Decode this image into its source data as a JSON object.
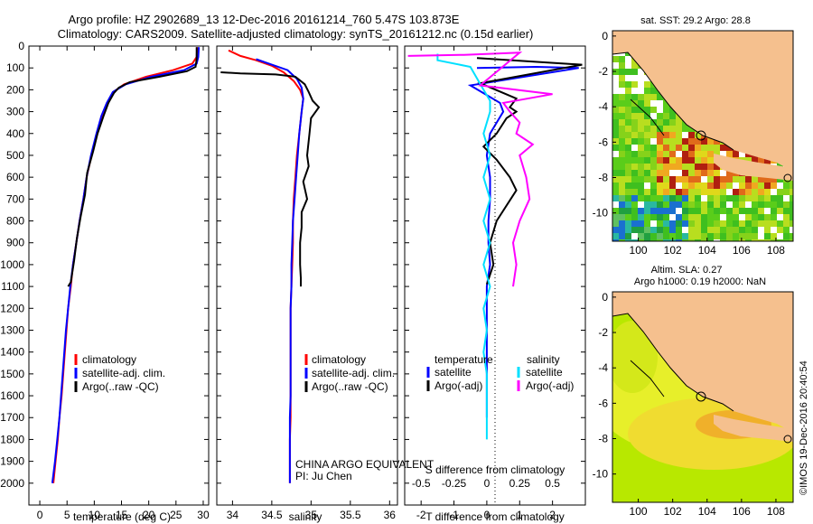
{
  "header": {
    "line1": "Argo profile: HZ 2902689_13 12-Dec-2016 20161214_760 5.47S 103.873E",
    "line2": "Climatology: CARS2009. Satellite-adjusted climatology: synTS_20161212.nc (0.15d earlier)"
  },
  "footer": {
    "credit": "©IMOS 19-Dec-2016 20:40:54"
  },
  "colors": {
    "climatology": "#ff0000",
    "satellite": "#0000ff",
    "argo": "#000000",
    "sal_sat": "#00e0ff",
    "sal_argo": "#ff00ff",
    "land": "#f5c08e"
  },
  "chart_data": [
    {
      "type": "line",
      "id": "temperature",
      "xlabel": "temperature (deg C)",
      "xlim": [
        -2,
        31
      ],
      "ylim": [
        2100,
        0
      ],
      "xticks": [
        0,
        5,
        10,
        15,
        20,
        25,
        30
      ],
      "yticks": [
        0,
        100,
        200,
        300,
        400,
        500,
        600,
        700,
        800,
        900,
        1000,
        1100,
        1200,
        1300,
        1400,
        1500,
        1600,
        1700,
        1800,
        1900,
        2000
      ],
      "legend": [
        "climatology",
        "satellite-adj. clim.",
        "Argo(..raw -QC)"
      ],
      "series": [
        {
          "name": "climatology",
          "color": "#ff0000",
          "points": [
            [
              28.9,
              5
            ],
            [
              28.8,
              50
            ],
            [
              28.0,
              80
            ],
            [
              24.5,
              110
            ],
            [
              19.5,
              140
            ],
            [
              15.5,
              175
            ],
            [
              13.5,
              210
            ],
            [
              12.5,
              260
            ],
            [
              11.5,
              320
            ],
            [
              10.5,
              400
            ],
            [
              9.5,
              500
            ],
            [
              8.6,
              600
            ],
            [
              8.0,
              700
            ],
            [
              7.3,
              800
            ],
            [
              6.7,
              900
            ],
            [
              6.1,
              1000
            ],
            [
              5.7,
              1100
            ],
            [
              5.2,
              1200
            ],
            [
              4.9,
              1300
            ],
            [
              4.6,
              1400
            ],
            [
              4.3,
              1500
            ],
            [
              4.0,
              1600
            ],
            [
              3.6,
              1700
            ],
            [
              3.3,
              1800
            ],
            [
              2.9,
              1900
            ],
            [
              2.5,
              2000
            ]
          ]
        },
        {
          "name": "satellite-adj. clim.",
          "color": "#0000ff",
          "points": [
            [
              29.2,
              5
            ],
            [
              29.1,
              50
            ],
            [
              28.8,
              80
            ],
            [
              26.5,
              110
            ],
            [
              20.5,
              140
            ],
            [
              15.8,
              175
            ],
            [
              13.4,
              210
            ],
            [
              12.3,
              260
            ],
            [
              11.3,
              320
            ],
            [
              10.4,
              400
            ],
            [
              9.4,
              500
            ],
            [
              8.6,
              600
            ],
            [
              8.0,
              700
            ],
            [
              7.3,
              800
            ],
            [
              6.7,
              900
            ],
            [
              6.1,
              1000
            ],
            [
              5.6,
              1100
            ],
            [
              5.2,
              1200
            ],
            [
              4.8,
              1300
            ],
            [
              4.5,
              1400
            ],
            [
              4.2,
              1500
            ],
            [
              3.9,
              1600
            ],
            [
              3.6,
              1700
            ],
            [
              3.2,
              1800
            ],
            [
              2.8,
              1900
            ],
            [
              2.3,
              2000
            ]
          ]
        },
        {
          "name": "Argo(..raw -QC)",
          "color": "#000000",
          "points": [
            [
              28.8,
              5
            ],
            [
              28.8,
              60
            ],
            [
              28.6,
              95
            ],
            [
              27.0,
              115
            ],
            [
              22.0,
              140
            ],
            [
              16.5,
              165
            ],
            [
              14.5,
              190
            ],
            [
              13.6,
              215
            ],
            [
              12.6,
              260
            ],
            [
              11.7,
              320
            ],
            [
              10.6,
              400
            ],
            [
              9.8,
              480
            ],
            [
              8.7,
              580
            ],
            [
              8.3,
              680
            ],
            [
              7.5,
              780
            ],
            [
              6.8,
              880
            ],
            [
              6.3,
              980
            ],
            [
              5.7,
              1080
            ],
            [
              5.2,
              1100
            ]
          ]
        }
      ]
    },
    {
      "type": "line",
      "id": "salinity",
      "xlabel": "salinity",
      "xlim": [
        33.8,
        36.1
      ],
      "ylim": [
        2100,
        0
      ],
      "xticks": [
        34,
        34.5,
        35,
        35.5,
        36
      ],
      "yticks": [
        0,
        100,
        200,
        300,
        400,
        500,
        600,
        700,
        800,
        900,
        1000,
        1100,
        1200,
        1300,
        1400,
        1500,
        1600,
        1700,
        1800,
        1900,
        2000
      ],
      "legend": [
        "climatology",
        "satellite-adj. clim.",
        "Argo(..raw -QC)"
      ],
      "annotations": [
        "CHINA ARGO EQUIVALENT",
        "PI: Ju Chen"
      ],
      "series": [
        {
          "name": "climatology",
          "color": "#ff0000",
          "points": [
            [
              33.95,
              20
            ],
            [
              34.1,
              45
            ],
            [
              34.3,
              65
            ],
            [
              34.5,
              90
            ],
            [
              34.65,
              120
            ],
            [
              34.78,
              160
            ],
            [
              34.86,
              200
            ],
            [
              34.9,
              240
            ],
            [
              34.88,
              300
            ],
            [
              34.85,
              400
            ],
            [
              34.82,
              500
            ],
            [
              34.8,
              600
            ],
            [
              34.78,
              700
            ],
            [
              34.77,
              800
            ],
            [
              34.77,
              900
            ],
            [
              34.76,
              1000
            ],
            [
              34.75,
              1100
            ],
            [
              34.74,
              1200
            ],
            [
              34.74,
              1300
            ],
            [
              34.74,
              1400
            ],
            [
              34.74,
              1500
            ],
            [
              34.74,
              1600
            ],
            [
              34.74,
              1700
            ],
            [
              34.73,
              1800
            ],
            [
              34.73,
              1900
            ],
            [
              34.73,
              2000
            ]
          ]
        },
        {
          "name": "satellite-adj. clim.",
          "color": "#0000ff",
          "points": [
            [
              34.3,
              60
            ],
            [
              34.5,
              85
            ],
            [
              34.7,
              110
            ],
            [
              34.82,
              150
            ],
            [
              34.88,
              190
            ],
            [
              34.9,
              240
            ],
            [
              34.88,
              300
            ],
            [
              34.85,
              400
            ],
            [
              34.83,
              500
            ],
            [
              34.81,
              600
            ],
            [
              34.79,
              700
            ],
            [
              34.77,
              800
            ],
            [
              34.76,
              900
            ],
            [
              34.75,
              1000
            ],
            [
              34.75,
              1100
            ],
            [
              34.74,
              1200
            ],
            [
              34.74,
              1300
            ],
            [
              34.74,
              1400
            ],
            [
              34.74,
              1500
            ],
            [
              34.74,
              1600
            ],
            [
              34.73,
              1700
            ],
            [
              34.73,
              1800
            ],
            [
              34.73,
              1900
            ],
            [
              34.73,
              2000
            ]
          ]
        },
        {
          "name": "Argo(..raw -QC)",
          "color": "#000000",
          "points": [
            [
              33.85,
              120
            ],
            [
              34.1,
              125
            ],
            [
              34.55,
              130
            ],
            [
              34.8,
              140
            ],
            [
              34.92,
              175
            ],
            [
              34.97,
              210
            ],
            [
              35.02,
              250
            ],
            [
              35.1,
              280
            ],
            [
              35.0,
              330
            ],
            [
              34.98,
              400
            ],
            [
              34.95,
              500
            ],
            [
              34.97,
              550
            ],
            [
              34.9,
              620
            ],
            [
              34.95,
              700
            ],
            [
              34.88,
              760
            ],
            [
              34.88,
              830
            ],
            [
              34.86,
              900
            ],
            [
              34.86,
              1000
            ],
            [
              34.87,
              1060
            ],
            [
              34.87,
              1100
            ]
          ]
        }
      ]
    },
    {
      "type": "line",
      "id": "differences",
      "xlabel_top": "S difference from climatology",
      "xlabel": "T difference from climatology",
      "xlim_T": [
        -2.5,
        3
      ],
      "xticks_T": [
        -2,
        -1,
        0,
        1,
        2
      ],
      "xticks_S": [
        "-0.5",
        "-0.25",
        "0",
        "0.25",
        "0.5"
      ],
      "ylim": [
        2100,
        0
      ],
      "legend_temperature_title": "temperature",
      "legend_salinity_title": "salinity",
      "legend": [
        "satellite",
        "Argo(-adj)",
        "satellite",
        "Argo(-adj)"
      ],
      "series": [
        {
          "name": "satellite",
          "quantity": "temperature",
          "color": "#0000ff",
          "points": [
            [
              -0.3,
              100
            ],
            [
              1.5,
              95
            ],
            [
              2.8,
              100
            ],
            [
              -0.5,
              180
            ],
            [
              0.4,
              260
            ],
            [
              0.5,
              300
            ],
            [
              0.1,
              400
            ],
            [
              0.0,
              500
            ],
            [
              0.1,
              600
            ],
            [
              0.1,
              700
            ],
            [
              0.05,
              800
            ],
            [
              0.05,
              900
            ],
            [
              0.1,
              1000
            ],
            [
              0.0,
              1100
            ],
            [
              0.0,
              1200
            ],
            [
              0.0,
              1300
            ],
            [
              0.0,
              1400
            ],
            [
              0.0,
              1500
            ],
            [
              0.0,
              1600
            ],
            [
              0.0,
              1700
            ]
          ]
        },
        {
          "name": "Argo(-adj)",
          "quantity": "temperature",
          "color": "#000000",
          "points": [
            [
              -0.3,
              55
            ],
            [
              1.8,
              75
            ],
            [
              2.9,
              85
            ],
            [
              -0.2,
              170
            ],
            [
              0.9,
              240
            ],
            [
              0.7,
              280
            ],
            [
              0.9,
              300
            ],
            [
              0.6,
              330
            ],
            [
              0.3,
              400
            ],
            [
              -0.1,
              460
            ],
            [
              0.3,
              520
            ],
            [
              0.7,
              600
            ],
            [
              0.9,
              660
            ],
            [
              0.6,
              730
            ],
            [
              0.3,
              800
            ],
            [
              0.1,
              900
            ],
            [
              0.2,
              1000
            ],
            [
              0.0,
              1090
            ]
          ]
        },
        {
          "name": "satellite",
          "quantity": "salinity",
          "color": "#00e0ff",
          "points": [
            [
              -1.5,
              35
            ],
            [
              -1.5,
              65
            ],
            [
              -0.5,
              95
            ],
            [
              -0.1,
              200
            ],
            [
              0.1,
              250
            ],
            [
              0.1,
              300
            ],
            [
              -0.1,
              400
            ],
            [
              0.1,
              500
            ],
            [
              -0.1,
              600
            ],
            [
              0.1,
              700
            ],
            [
              -0.1,
              800
            ],
            [
              0.1,
              900
            ],
            [
              -0.1,
              1000
            ],
            [
              0.1,
              1100
            ],
            [
              -0.1,
              1200
            ],
            [
              0.0,
              1300
            ],
            [
              -0.1,
              1400
            ],
            [
              0.0,
              1500
            ],
            [
              0.0,
              1600
            ],
            [
              0.0,
              1700
            ],
            [
              0.0,
              1800
            ]
          ]
        },
        {
          "name": "Argo(-adj)",
          "quantity": "salinity",
          "color": "#ff00ff",
          "points": [
            [
              -2.4,
              45
            ],
            [
              -0.7,
              40
            ],
            [
              1.0,
              30
            ],
            [
              -0.2,
              180
            ],
            [
              2.0,
              220
            ],
            [
              0.5,
              260
            ],
            [
              0.7,
              300
            ],
            [
              1.0,
              350
            ],
            [
              0.9,
              400
            ],
            [
              1.4,
              450
            ],
            [
              1.0,
              500
            ],
            [
              1.2,
              600
            ],
            [
              1.3,
              700
            ],
            [
              1.0,
              800
            ],
            [
              0.8,
              900
            ],
            [
              0.9,
              1000
            ],
            [
              0.8,
              1100
            ]
          ]
        }
      ]
    },
    {
      "type": "heatmap",
      "id": "sst_map",
      "title": "sat. SST: 29.2 Argo: 28.8",
      "xticks": [
        100,
        102,
        104,
        106,
        108
      ],
      "yticks": [
        0,
        -2,
        -4,
        -6,
        -8,
        -10
      ],
      "xlim": [
        98.5,
        109
      ],
      "ylim": [
        -11.6,
        0.3
      ],
      "argo_position": [
        103.873,
        -5.47
      ]
    },
    {
      "type": "heatmap",
      "id": "sla_map",
      "title": "Altim. SLA: 0.27",
      "subtitle": "Argo h1000: 0.19 h2000: NaN",
      "xticks": [
        100,
        102,
        104,
        106,
        108
      ],
      "yticks": [
        0,
        -2,
        -4,
        -6,
        -8,
        -10
      ],
      "xlim": [
        98.5,
        109
      ],
      "ylim": [
        -11.6,
        0.3
      ],
      "argo_position": [
        103.873,
        -5.47
      ]
    }
  ]
}
